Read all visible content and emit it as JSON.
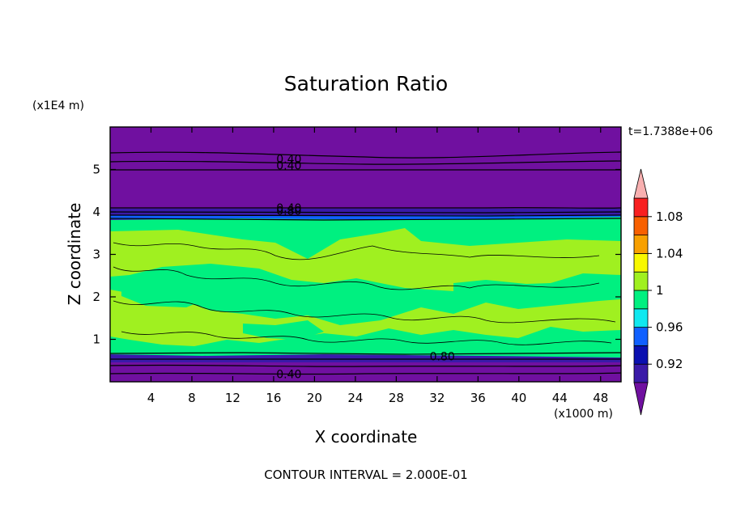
{
  "chart_data": {
    "type": "heatmap",
    "title": "Saturation Ratio",
    "xlabel": "X coordinate",
    "ylabel": "Z coordinate",
    "x_unit": "(x1000 m)",
    "y_unit": "(x1E4 m)",
    "time_label": "t=1.7388e+06",
    "footer": "CONTOUR INTERVAL = 2.000E-01",
    "xlim": [
      0,
      50
    ],
    "ylim": [
      0,
      6
    ],
    "x_ticks": [
      4,
      8,
      12,
      16,
      20,
      24,
      28,
      32,
      36,
      40,
      44,
      48
    ],
    "y_ticks": [
      1,
      2,
      3,
      4,
      5
    ],
    "contour_labels": [
      {
        "text": "0.40",
        "x": 17.5,
        "y": 5.25
      },
      {
        "text": "0.40",
        "x": 17.5,
        "y": 5.1
      },
      {
        "text": "0.40",
        "x": 17.5,
        "y": 4.1
      },
      {
        "text": "0.80",
        "x": 17.5,
        "y": 4.03
      },
      {
        "text": "0.80",
        "x": 32.5,
        "y": 0.6
      },
      {
        "text": "0.40",
        "x": 17.5,
        "y": 0.18
      }
    ],
    "colorbar": {
      "levels": [
        0.92,
        0.96,
        1,
        1.04,
        1.08
      ],
      "labels": [
        "0.92",
        "0.96",
        "1",
        "1.04",
        "1.08"
      ],
      "colors": [
        "#3a1aa8",
        "#0a10b0",
        "#1060ff",
        "#10e8f0",
        "#00f080",
        "#a0f020",
        "#f8f800",
        "#f8a000",
        "#f86000",
        "#f82020",
        "#f8b0b0"
      ],
      "under_color": "#7010a0",
      "over_color": "#f8b0b0"
    },
    "regions": {
      "background": "#7010a0",
      "dry_band": "#3a1aa8",
      "cloud_low": "#00f080",
      "cloud_high": "#a0f020"
    }
  }
}
